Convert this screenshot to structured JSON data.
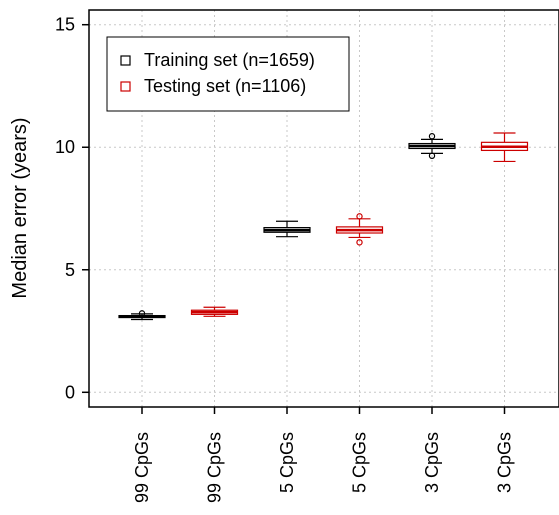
{
  "chart_data": {
    "type": "boxplot",
    "ylabel": "Median error (years)",
    "ylim": [
      -0.6,
      15.6
    ],
    "yticks": [
      0,
      5,
      10,
      15
    ],
    "grid": true,
    "legend": {
      "placement": "top-left",
      "entries": [
        {
          "label": "Training set (n=1659)",
          "color": "#000000"
        },
        {
          "label": "Testing set (n=1106)",
          "color": "#cc0000"
        }
      ]
    },
    "categories": [
      "99 CpGs",
      "99 CpGs",
      "5 CpGs",
      "5 CpGs",
      "3 CpGs",
      "3 CpGs"
    ],
    "boxes": [
      {
        "category": "99 CpGs",
        "set": "Training set (n=1659)",
        "color": "#000000",
        "whisker_low": 2.97,
        "q1": 3.05,
        "median": 3.09,
        "q3": 3.13,
        "whisker_high": 3.2,
        "outliers": [
          3.22
        ]
      },
      {
        "category": "99 CpGs",
        "set": "Testing set (n=1106)",
        "color": "#cc0000",
        "whisker_low": 3.1,
        "q1": 3.18,
        "median": 3.27,
        "q3": 3.35,
        "whisker_high": 3.47,
        "outliers": []
      },
      {
        "category": "5 CpGs",
        "set": "Training set (n=1659)",
        "color": "#000000",
        "whisker_low": 6.35,
        "q1": 6.53,
        "median": 6.62,
        "q3": 6.72,
        "whisker_high": 6.98,
        "outliers": []
      },
      {
        "category": "5 CpGs",
        "set": "Testing set (n=1106)",
        "color": "#cc0000",
        "whisker_low": 6.32,
        "q1": 6.5,
        "median": 6.62,
        "q3": 6.75,
        "whisker_high": 7.08,
        "outliers": [
          7.18,
          6.12
        ]
      },
      {
        "category": "3 CpGs",
        "set": "Training set (n=1659)",
        "color": "#000000",
        "whisker_low": 9.75,
        "q1": 9.95,
        "median": 10.05,
        "q3": 10.15,
        "whisker_high": 10.32,
        "outliers": [
          10.45,
          9.65
        ]
      },
      {
        "category": "3 CpGs",
        "set": "Testing set (n=1106)",
        "color": "#cc0000",
        "whisker_low": 9.42,
        "q1": 9.87,
        "median": 10.02,
        "q3": 10.2,
        "whisker_high": 10.58,
        "outliers": []
      }
    ]
  }
}
